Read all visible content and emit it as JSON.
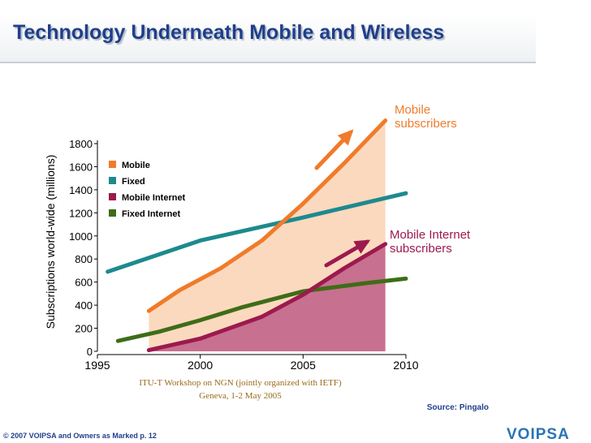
{
  "slide": {
    "title": "Technology Underneath Mobile and Wireless",
    "source": "Source: Pingalo",
    "footer": "© 2007 VOIPSA and Owners as Marked   p. 12",
    "logo_text": "VOIPSA"
  },
  "colors": {
    "title": "#1f3f8a",
    "mobile": "#f07b2a",
    "fixed": "#1d8a8e",
    "mobile_internet": "#9c1a4e",
    "fixed_internet": "#3e6d17",
    "mobile_fill": "#fbd9bf",
    "mobile_internet_fill": "#c8708f",
    "logo": "#2a73b8"
  },
  "chart_data": {
    "type": "line",
    "ylabel": "Subscriptions world-wide (millions)",
    "ylim": [
      0,
      1800
    ],
    "xlim": [
      1995,
      2010
    ],
    "yticks": [
      "0",
      "200",
      "400",
      "600",
      "800",
      "1000",
      "1200",
      "1400",
      "1600",
      "1800"
    ],
    "xticks": [
      "1995",
      "2000",
      "2005",
      "2010"
    ],
    "legend_position": "top-left",
    "series": [
      {
        "name": "Mobile",
        "key": "mobile",
        "x": [
          1997.5,
          1999,
          2001,
          2003,
          2005,
          2007,
          2009
        ],
        "values": [
          350,
          530,
          720,
          960,
          1280,
          1630,
          2000
        ],
        "fill": true
      },
      {
        "name": "Fixed",
        "key": "fixed",
        "x": [
          1995.5,
          2000,
          2005,
          2010
        ],
        "values": [
          690,
          960,
          1160,
          1370
        ],
        "fill": false
      },
      {
        "name": "Mobile Internet",
        "key": "mobile_internet",
        "x": [
          1997.5,
          2000,
          2003,
          2005,
          2007,
          2009
        ],
        "values": [
          10,
          110,
          300,
          490,
          720,
          930
        ],
        "fill": true
      },
      {
        "name": "Fixed Internet",
        "key": "fixed_internet",
        "x": [
          1996,
          1998,
          2000,
          2002,
          2005,
          2008,
          2010
        ],
        "values": [
          90,
          170,
          270,
          380,
          520,
          590,
          630
        ],
        "fill": false
      }
    ],
    "annotations": [
      {
        "lines": [
          "Mobile",
          "subscribers"
        ],
        "series": "mobile"
      },
      {
        "lines": [
          "Mobile Internet",
          "subscribers"
        ],
        "series": "mobile_internet"
      }
    ],
    "caption": [
      "ITU-T Workshop on NGN (jointly organized with IETF)",
      "Geneva, 1-2 May 2005"
    ]
  }
}
